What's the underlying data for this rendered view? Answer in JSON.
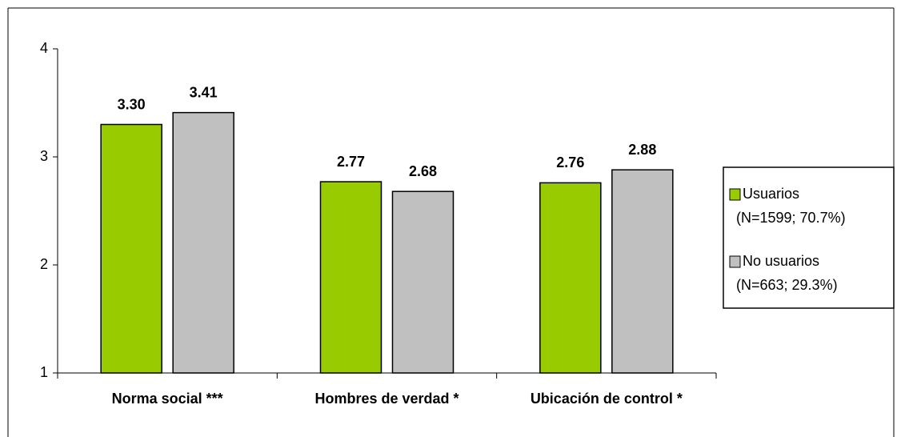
{
  "chart_data": {
    "type": "bar",
    "categories": [
      "Norma social ***",
      "Hombres de verdad *",
      "Ubicación de control *"
    ],
    "series": [
      {
        "name": "Usuarios\n(N=1599; 70.7%)",
        "color": "#99cc00",
        "values": [
          3.3,
          2.77,
          2.76
        ],
        "value_labels": [
          "3.30",
          "2.77",
          "2.76"
        ]
      },
      {
        "name": "No usuarios\n(N=663; 29.3%)",
        "color": "#c0c0c0",
        "values": [
          3.41,
          2.68,
          2.88
        ],
        "value_labels": [
          "3.41",
          "2.68",
          "2.88"
        ]
      }
    ],
    "ylim": [
      1,
      4
    ],
    "yticks": [
      1,
      2,
      3,
      4
    ],
    "grid": false,
    "legend": "right"
  }
}
